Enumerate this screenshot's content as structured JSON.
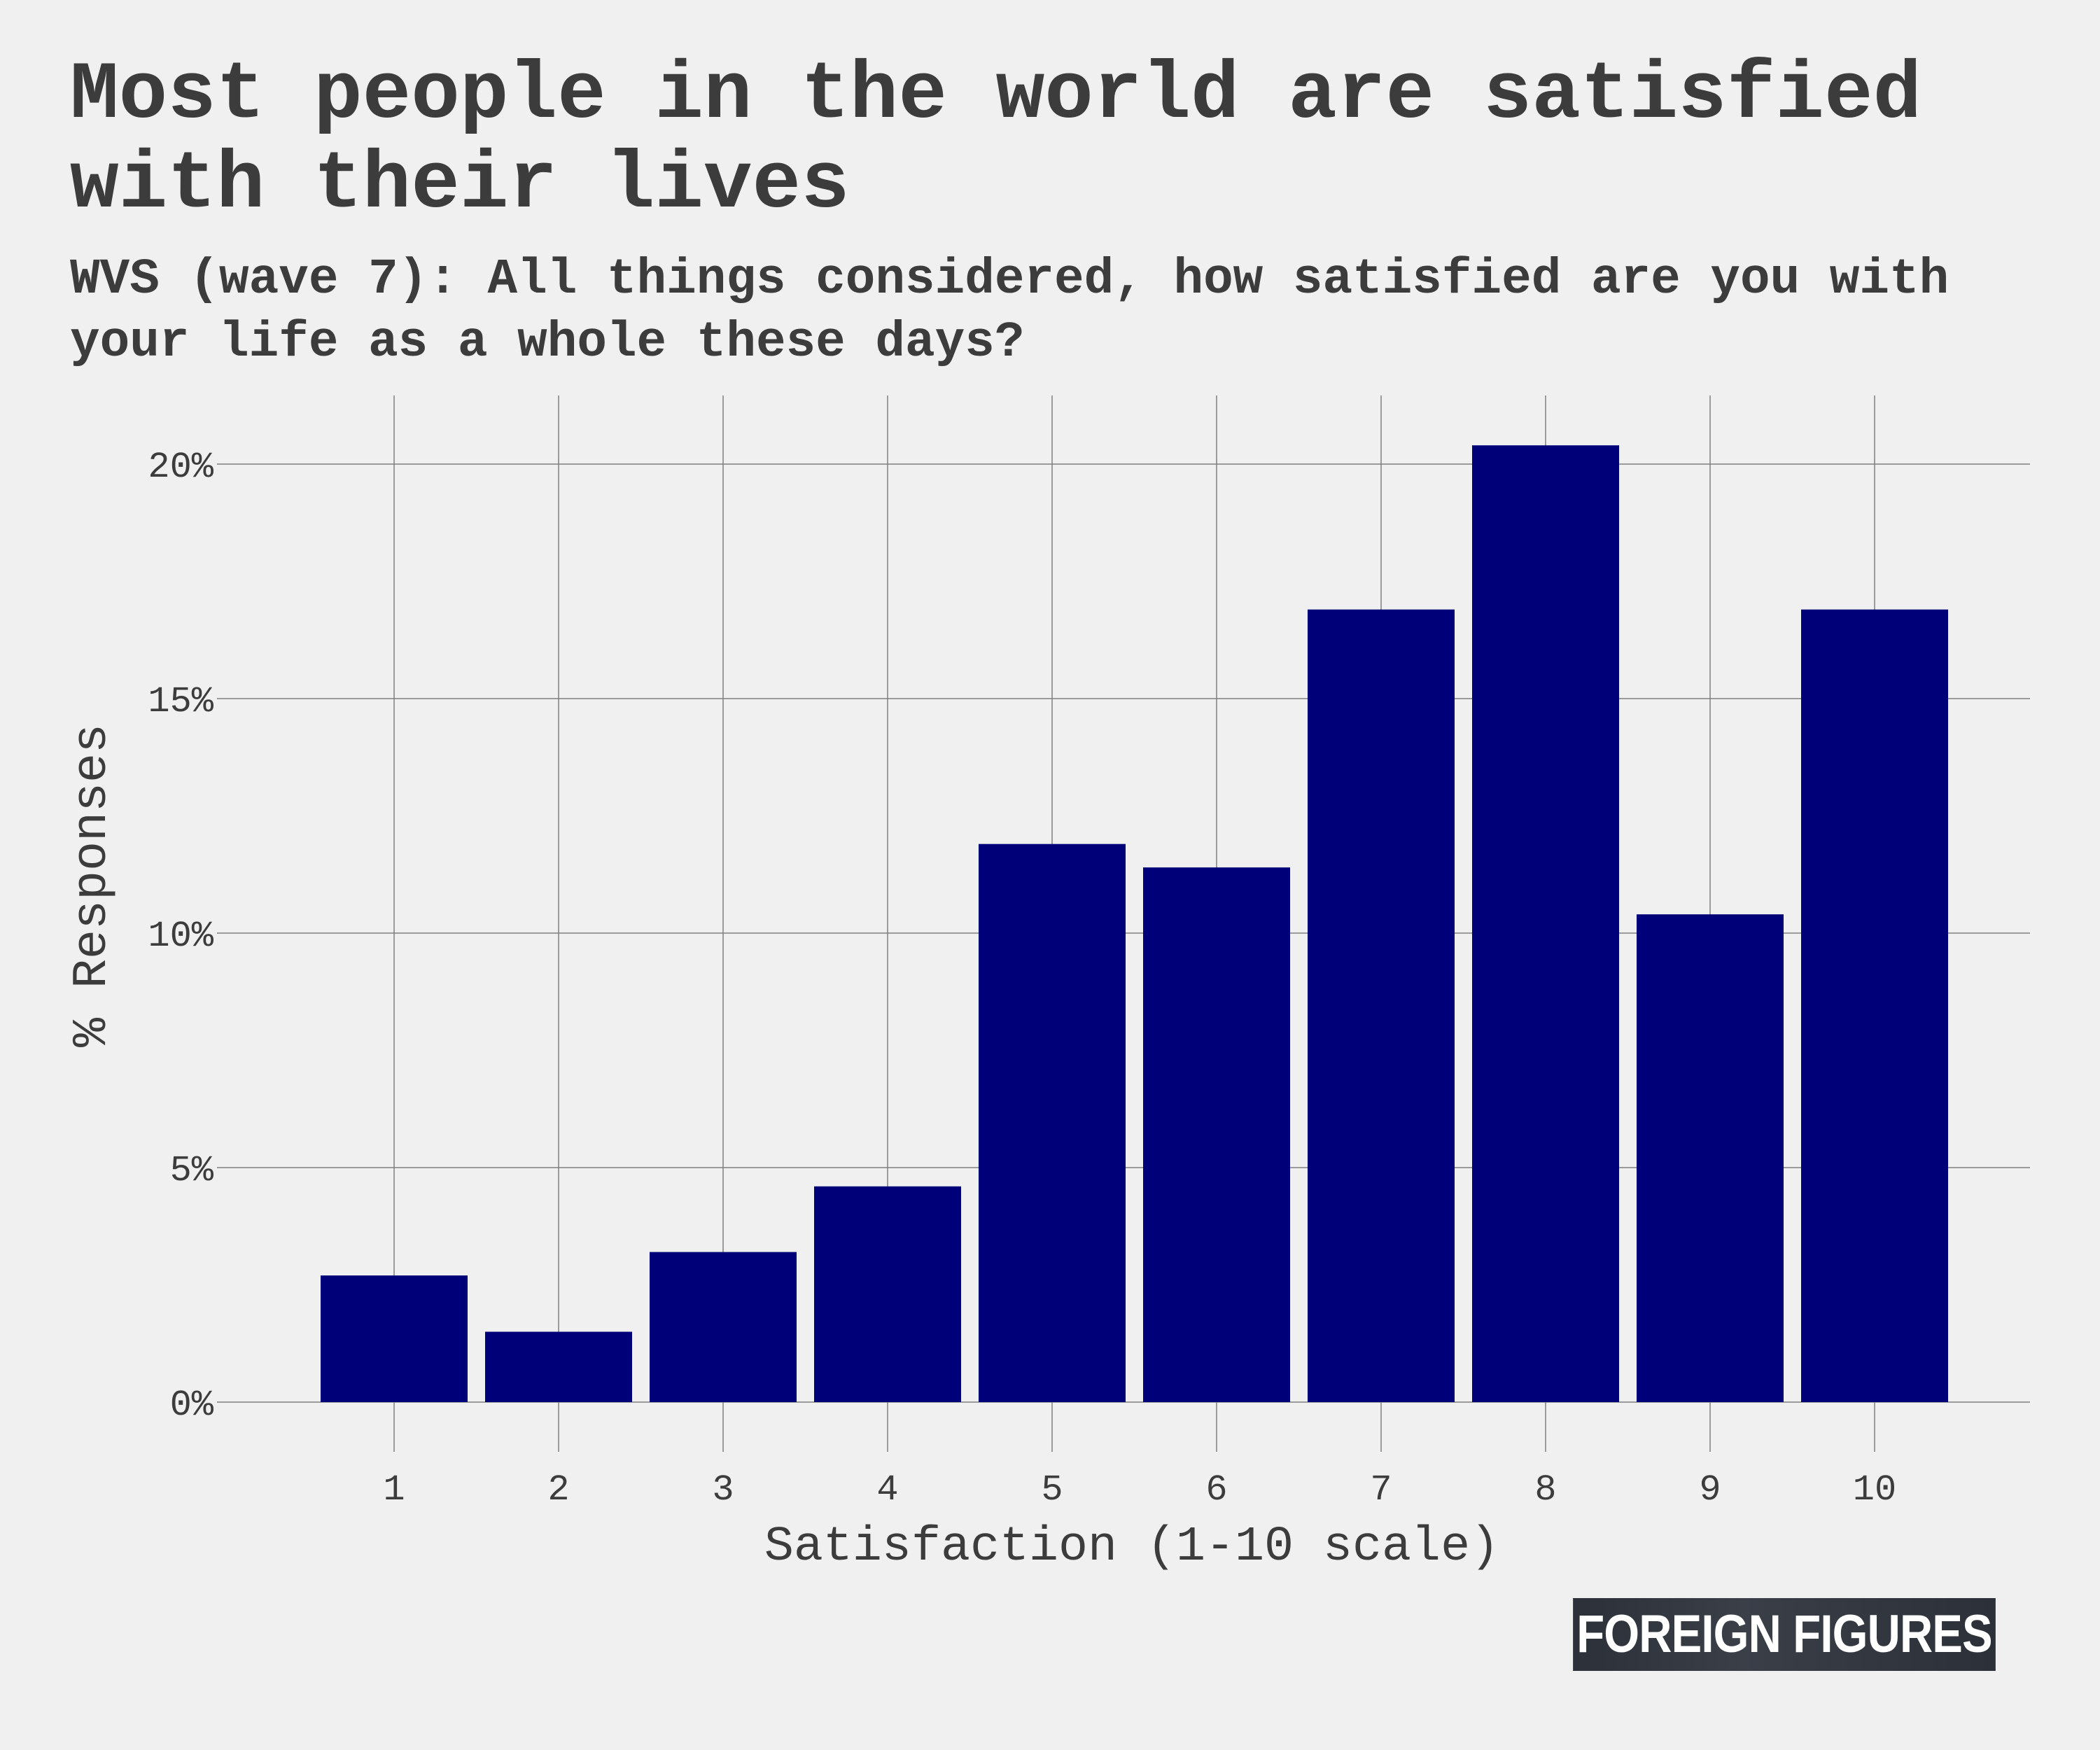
{
  "title": "Most people in the world are satisfied with their lives",
  "subtitle": "WVS (wave 7): All things considered, how satisfied are you with your life as a whole these days?",
  "brand": "FOREIGN FIGURES",
  "colors": {
    "bar": "#000078",
    "background": "#f0f0f0",
    "grid": "#7f7f7f",
    "text": "#3c3c3c"
  },
  "chart_data": {
    "type": "bar",
    "title": "Most people in the world are satisfied with their lives",
    "subtitle": "WVS (wave 7): All things considered, how satisfied are you with your life as a whole these days?",
    "xlabel": "Satisfaction (1-10 scale)",
    "ylabel": "% Responses",
    "categories": [
      "1",
      "2",
      "3",
      "4",
      "5",
      "6",
      "7",
      "8",
      "9",
      "10"
    ],
    "values": [
      2.7,
      1.5,
      3.2,
      4.6,
      11.9,
      11.4,
      16.9,
      20.4,
      10.4,
      16.9
    ],
    "ylim": [
      0,
      21.4
    ],
    "yticks": [
      0,
      5,
      10,
      15,
      20
    ],
    "ytick_labels": [
      "0%",
      "5%",
      "10%",
      "15%",
      "20%"
    ],
    "grid": true,
    "legend": "none"
  }
}
